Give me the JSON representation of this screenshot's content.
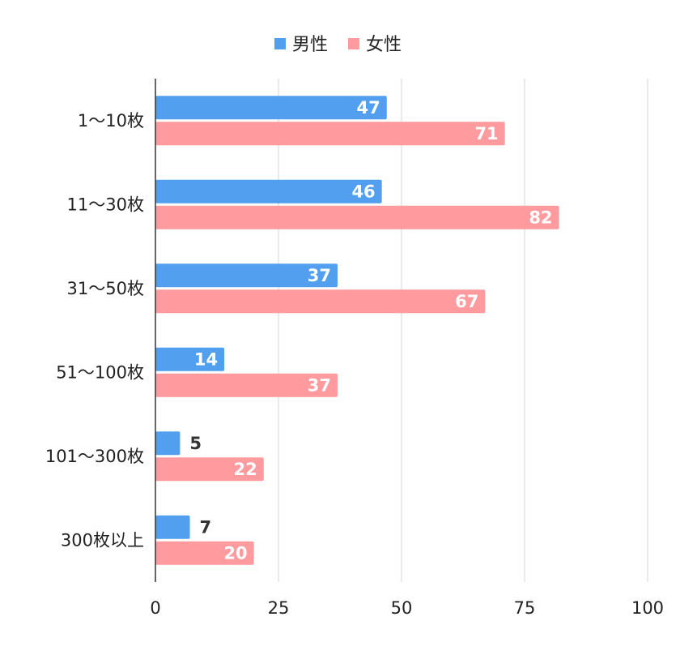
{
  "chart_data": {
    "type": "bar",
    "orientation": "horizontal",
    "categories": [
      "1〜10枚",
      "11〜30枚",
      "31〜50枚",
      "51〜100枚",
      "101〜300枚",
      "300枚以上"
    ],
    "series": [
      {
        "name": "男性",
        "values": [
          47,
          46,
          37,
          14,
          5,
          7
        ],
        "color": "#519FEE"
      },
      {
        "name": "女性",
        "values": [
          71,
          82,
          67,
          37,
          22,
          20
        ],
        "color": "#FF9A9E"
      }
    ],
    "xlim": [
      0,
      100
    ],
    "xticks": [
      0,
      25,
      50,
      75,
      100
    ],
    "grid": true,
    "legend_position": "top-center",
    "data_labels": true
  }
}
